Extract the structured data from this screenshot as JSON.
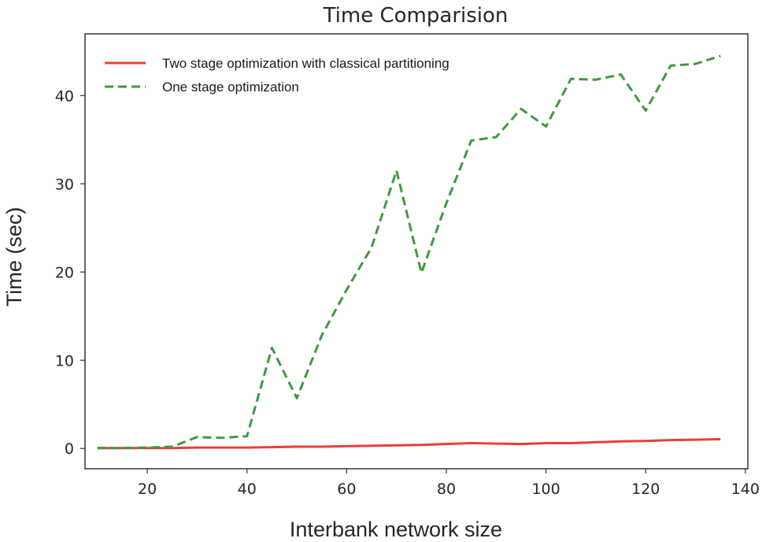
{
  "chart_data": {
    "type": "line",
    "title": "Time Comparision",
    "xlabel": "Interbank network size",
    "ylabel": "Time (sec)",
    "xlim": [
      7.5,
      140.5
    ],
    "ylim": [
      -2.3,
      47
    ],
    "xticks": [
      20,
      40,
      60,
      80,
      100,
      120,
      140
    ],
    "yticks": [
      0,
      10,
      20,
      30,
      40
    ],
    "grid": false,
    "legend_position": "top-left",
    "series": [
      {
        "name": "Two stage optimization with classical partitioning",
        "color": "#e8403a",
        "dash": "solid",
        "x": [
          10,
          15,
          20,
          25,
          30,
          35,
          40,
          45,
          50,
          55,
          60,
          65,
          70,
          75,
          80,
          85,
          90,
          95,
          100,
          105,
          110,
          115,
          120,
          125,
          130,
          135
        ],
        "y": [
          0.05,
          0.05,
          0.05,
          0.05,
          0.1,
          0.1,
          0.1,
          0.15,
          0.2,
          0.2,
          0.25,
          0.3,
          0.35,
          0.4,
          0.5,
          0.6,
          0.55,
          0.5,
          0.6,
          0.6,
          0.7,
          0.8,
          0.85,
          0.95,
          1.0,
          1.05
        ]
      },
      {
        "name": "One stage optimization",
        "color": "#3e9a3e",
        "dash": "dashed",
        "x": [
          10,
          15,
          20,
          25,
          30,
          35,
          40,
          45,
          50,
          55,
          60,
          65,
          70,
          75,
          80,
          85,
          90,
          95,
          100,
          105,
          110,
          115,
          120,
          125,
          130,
          135
        ],
        "y": [
          0.05,
          0.05,
          0.1,
          0.2,
          1.3,
          1.2,
          1.4,
          11.4,
          5.7,
          12.8,
          18.0,
          22.8,
          31.5,
          19.9,
          27.8,
          34.9,
          35.3,
          38.5,
          36.5,
          41.9,
          41.8,
          42.4,
          38.3,
          43.4,
          43.6,
          44.5
        ]
      }
    ]
  }
}
